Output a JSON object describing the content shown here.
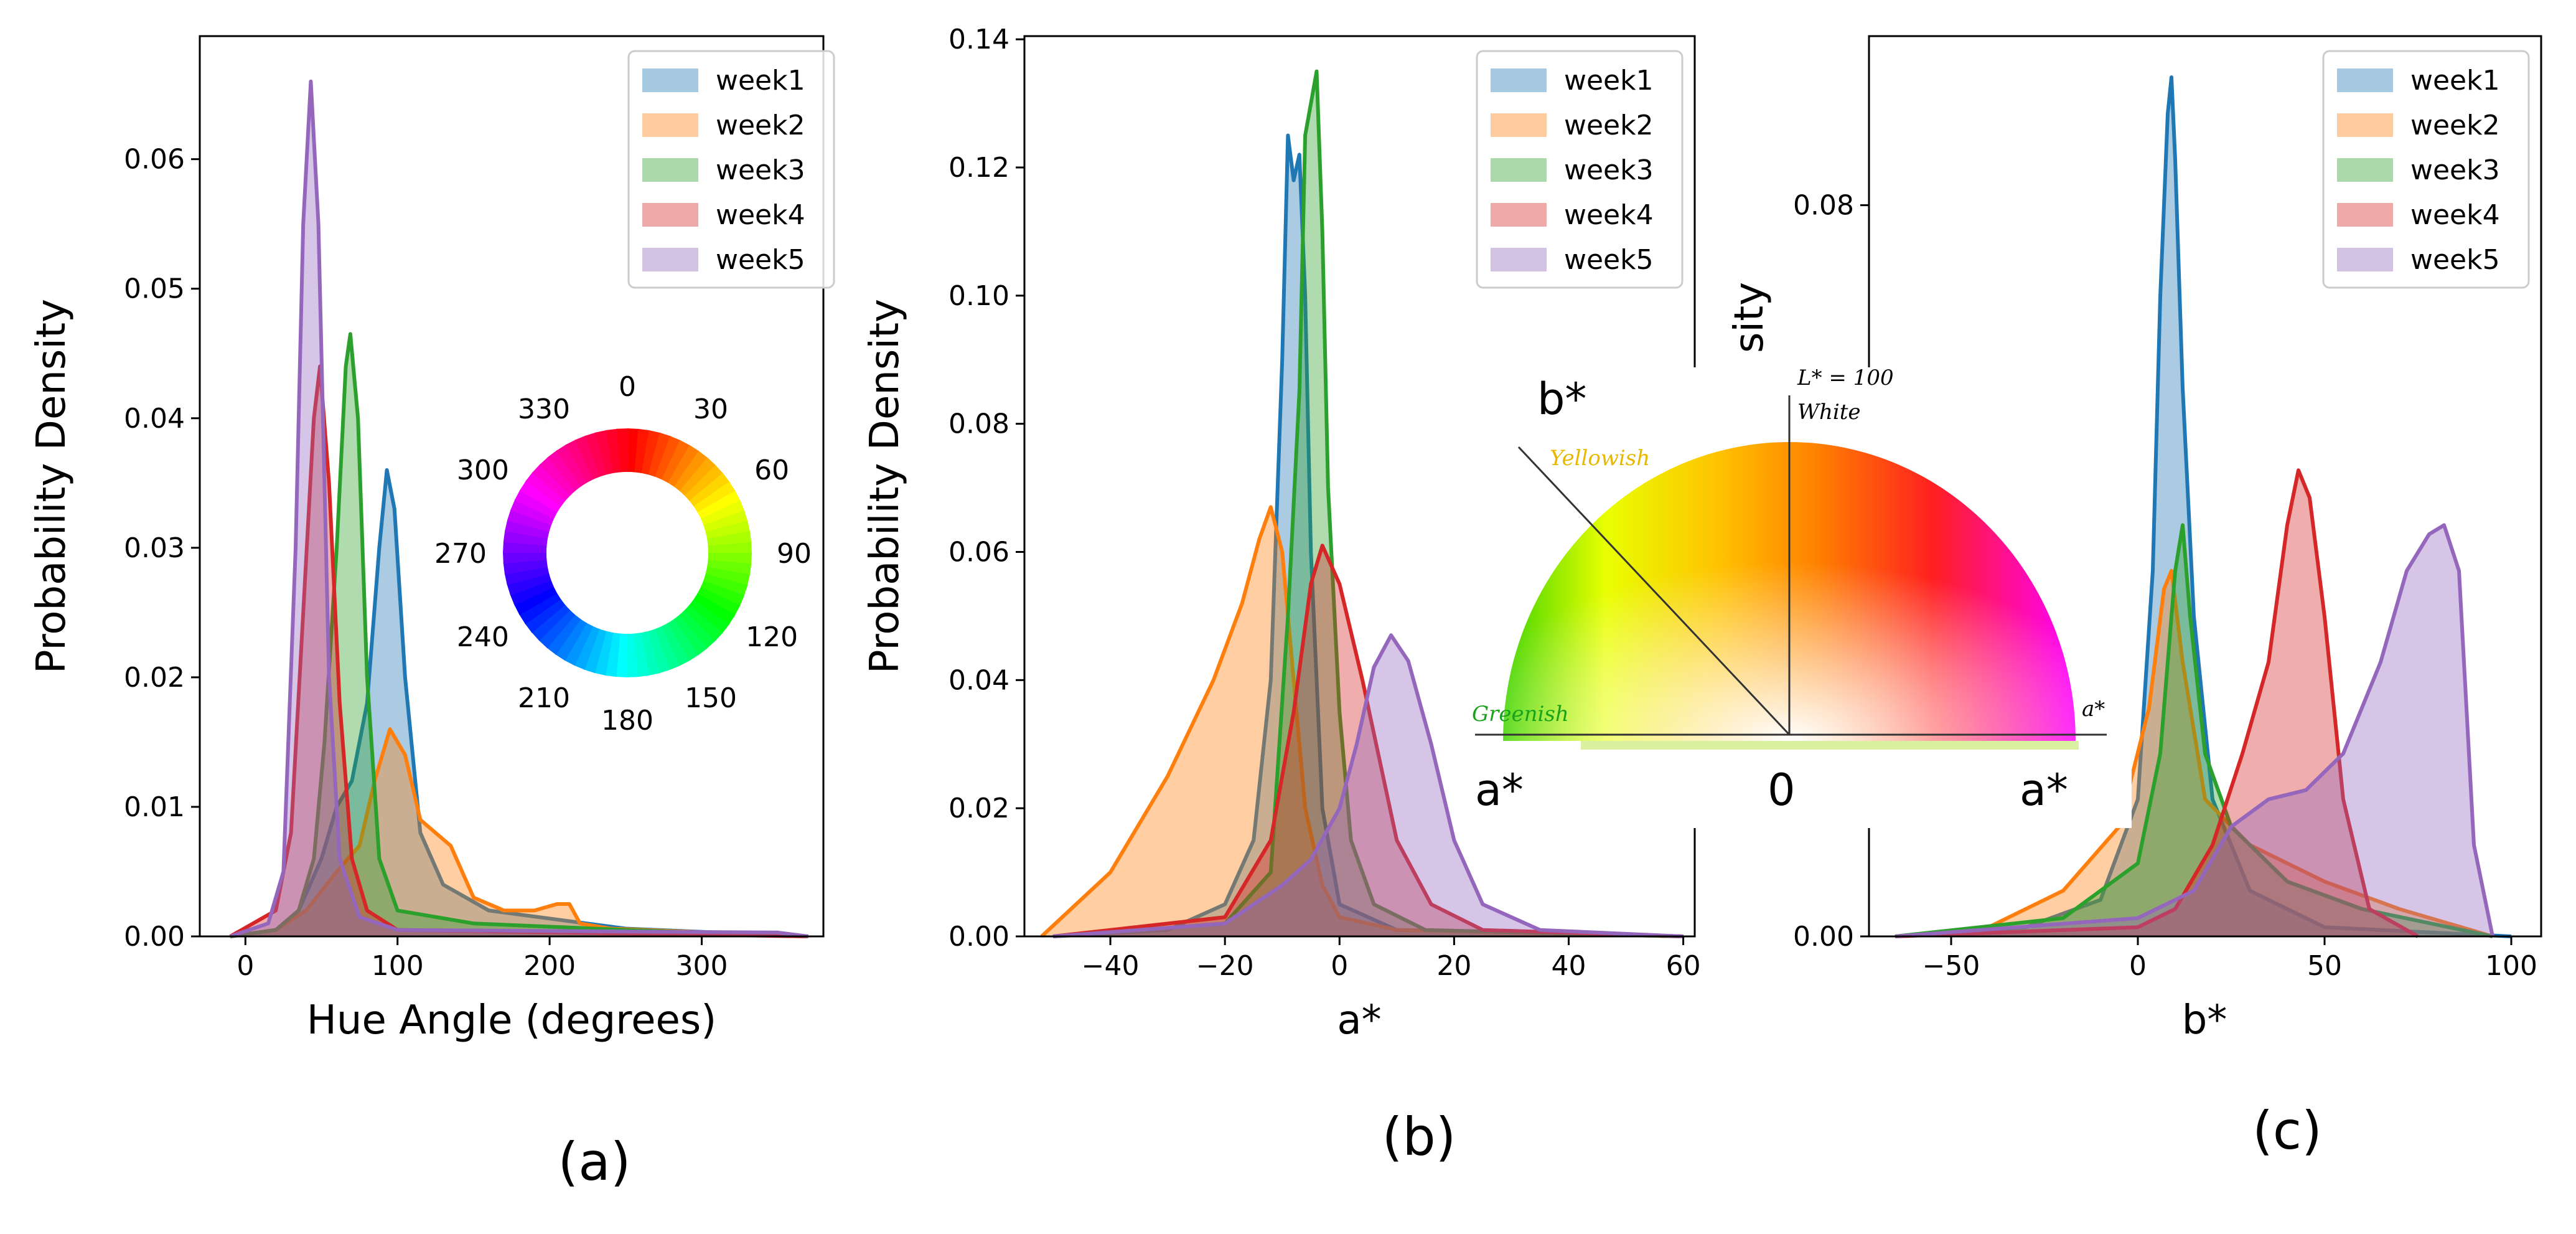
{
  "chart_data": [
    {
      "type": "area",
      "panel": "(a)",
      "xlabel": "Hue Angle (degrees)",
      "ylabel": "Probability Density",
      "xlim": [
        -30,
        380
      ],
      "ylim": [
        0,
        0.0695
      ],
      "xticks": [
        0,
        100,
        200,
        300
      ],
      "yticks": [
        0.0,
        0.01,
        0.02,
        0.03,
        0.04,
        0.05,
        0.06
      ],
      "ytick_labels": [
        "0.00",
        "0.01",
        "0.02",
        "0.03",
        "0.04",
        "0.05",
        "0.06"
      ],
      "legend": [
        "week1",
        "week2",
        "week3",
        "week4",
        "week5"
      ],
      "legend_position": "top-right",
      "series": [
        {
          "name": "week1",
          "color": "#1f77b4",
          "points": [
            [
              -10,
              0
            ],
            [
              20,
              0.0005
            ],
            [
              35,
              0.002
            ],
            [
              50,
              0.006
            ],
            [
              60,
              0.01
            ],
            [
              70,
              0.012
            ],
            [
              80,
              0.018
            ],
            [
              88,
              0.03
            ],
            [
              93,
              0.036
            ],
            [
              98,
              0.033
            ],
            [
              105,
              0.02
            ],
            [
              115,
              0.008
            ],
            [
              130,
              0.004
            ],
            [
              160,
              0.002
            ],
            [
              250,
              0.0006
            ],
            [
              370,
              0
            ]
          ]
        },
        {
          "name": "week2",
          "color": "#ff7f0e",
          "points": [
            [
              -10,
              0
            ],
            [
              20,
              0.0005
            ],
            [
              40,
              0.002
            ],
            [
              60,
              0.005
            ],
            [
              75,
              0.007
            ],
            [
              85,
              0.012
            ],
            [
              95,
              0.016
            ],
            [
              105,
              0.014
            ],
            [
              115,
              0.009
            ],
            [
              125,
              0.008
            ],
            [
              135,
              0.007
            ],
            [
              150,
              0.003
            ],
            [
              170,
              0.002
            ],
            [
              190,
              0.002
            ],
            [
              205,
              0.0025
            ],
            [
              213,
              0.0025
            ],
            [
              220,
              0.001
            ],
            [
              240,
              0.0006
            ],
            [
              370,
              0
            ]
          ]
        },
        {
          "name": "week3",
          "color": "#2ca02c",
          "points": [
            [
              -10,
              0
            ],
            [
              20,
              0.0005
            ],
            [
              35,
              0.002
            ],
            [
              45,
              0.006
            ],
            [
              52,
              0.015
            ],
            [
              60,
              0.03
            ],
            [
              66,
              0.044
            ],
            [
              69,
              0.0465
            ],
            [
              74,
              0.04
            ],
            [
              80,
              0.02
            ],
            [
              88,
              0.006
            ],
            [
              100,
              0.002
            ],
            [
              150,
              0.001
            ],
            [
              250,
              0.0005
            ],
            [
              370,
              0
            ]
          ]
        },
        {
          "name": "week4",
          "color": "#d62728",
          "points": [
            [
              -10,
              0
            ],
            [
              20,
              0.002
            ],
            [
              30,
              0.008
            ],
            [
              38,
              0.025
            ],
            [
              45,
              0.04
            ],
            [
              49,
              0.044
            ],
            [
              55,
              0.035
            ],
            [
              62,
              0.018
            ],
            [
              70,
              0.006
            ],
            [
              80,
              0.002
            ],
            [
              100,
              0.0005
            ],
            [
              370,
              0
            ]
          ]
        },
        {
          "name": "week5",
          "color": "#9467bd",
          "points": [
            [
              -10,
              0
            ],
            [
              15,
              0.001
            ],
            [
              25,
              0.005
            ],
            [
              33,
              0.03
            ],
            [
              38,
              0.055
            ],
            [
              43,
              0.066
            ],
            [
              48,
              0.055
            ],
            [
              55,
              0.02
            ],
            [
              62,
              0.006
            ],
            [
              75,
              0.0015
            ],
            [
              100,
              0.0005
            ],
            [
              350,
              0.0003
            ],
            [
              370,
              0
            ]
          ]
        }
      ],
      "inset": {
        "type": "hue-wheel",
        "labels": [
          "0",
          "30",
          "60",
          "90",
          "120",
          "150",
          "180",
          "210",
          "240",
          "270",
          "300",
          "330"
        ]
      }
    },
    {
      "type": "area",
      "panel": "(b)",
      "xlabel": "a*",
      "ylabel": "Probability Density",
      "xlim": [
        -55,
        62
      ],
      "ylim": [
        0,
        0.1405
      ],
      "xticks": [
        -40,
        -20,
        0,
        20,
        40,
        60
      ],
      "xtick_labels": [
        "−40",
        "−20",
        "0",
        "20",
        "40",
        "60"
      ],
      "yticks": [
        0.0,
        0.02,
        0.04,
        0.06,
        0.08,
        0.1,
        0.12,
        0.14
      ],
      "ytick_labels": [
        "0.00",
        "0.02",
        "0.04",
        "0.06",
        "0.08",
        "0.10",
        "0.12",
        "0.14"
      ],
      "legend": [
        "week1",
        "week2",
        "week3",
        "week4",
        "week5"
      ],
      "legend_position": "top-right",
      "series": [
        {
          "name": "week1",
          "color": "#1f77b4",
          "points": [
            [
              -50,
              0
            ],
            [
              -30,
              0.001
            ],
            [
              -20,
              0.005
            ],
            [
              -15,
              0.015
            ],
            [
              -12,
              0.04
            ],
            [
              -10,
              0.09
            ],
            [
              -9,
              0.125
            ],
            [
              -8,
              0.118
            ],
            [
              -7,
              0.122
            ],
            [
              -6,
              0.1
            ],
            [
              -5,
              0.06
            ],
            [
              -3,
              0.02
            ],
            [
              0,
              0.005
            ],
            [
              10,
              0.001
            ],
            [
              60,
              0
            ]
          ]
        },
        {
          "name": "week2",
          "color": "#ff7f0e",
          "points": [
            [
              -52,
              0
            ],
            [
              -40,
              0.01
            ],
            [
              -30,
              0.025
            ],
            [
              -22,
              0.04
            ],
            [
              -17,
              0.052
            ],
            [
              -14,
              0.062
            ],
            [
              -12,
              0.067
            ],
            [
              -10,
              0.06
            ],
            [
              -8,
              0.04
            ],
            [
              -6,
              0.02
            ],
            [
              -3,
              0.008
            ],
            [
              0,
              0.003
            ],
            [
              10,
              0.001
            ],
            [
              60,
              0
            ]
          ]
        },
        {
          "name": "week3",
          "color": "#2ca02c",
          "points": [
            [
              -50,
              0
            ],
            [
              -20,
              0.002
            ],
            [
              -12,
              0.01
            ],
            [
              -9,
              0.05
            ],
            [
              -7,
              0.085
            ],
            [
              -6,
              0.125
            ],
            [
              -5,
              0.13
            ],
            [
              -4,
              0.135
            ],
            [
              -3,
              0.11
            ],
            [
              -2,
              0.07
            ],
            [
              0,
              0.035
            ],
            [
              2,
              0.015
            ],
            [
              6,
              0.005
            ],
            [
              15,
              0.001
            ],
            [
              60,
              0
            ]
          ]
        },
        {
          "name": "week4",
          "color": "#d62728",
          "points": [
            [
              -50,
              0
            ],
            [
              -20,
              0.003
            ],
            [
              -12,
              0.015
            ],
            [
              -8,
              0.035
            ],
            [
              -5,
              0.055
            ],
            [
              -3,
              0.061
            ],
            [
              0,
              0.055
            ],
            [
              4,
              0.04
            ],
            [
              10,
              0.015
            ],
            [
              16,
              0.005
            ],
            [
              25,
              0.001
            ],
            [
              60,
              0
            ]
          ]
        },
        {
          "name": "week5",
          "color": "#9467bd",
          "points": [
            [
              -50,
              0
            ],
            [
              -20,
              0.002
            ],
            [
              -10,
              0.008
            ],
            [
              -5,
              0.012
            ],
            [
              0,
              0.02
            ],
            [
              3,
              0.03
            ],
            [
              6,
              0.042
            ],
            [
              9,
              0.047
            ],
            [
              12,
              0.043
            ],
            [
              16,
              0.03
            ],
            [
              20,
              0.015
            ],
            [
              25,
              0.005
            ],
            [
              35,
              0.001
            ],
            [
              60,
              0
            ]
          ]
        }
      ]
    },
    {
      "type": "area",
      "panel": "(c)",
      "xlabel": "b*",
      "ylabel": "sity",
      "xlim": [
        -72,
        108
      ],
      "ylim": [
        0,
        0.0985
      ],
      "xticks": [
        -50,
        0,
        50,
        100
      ],
      "xtick_labels": [
        "−50",
        "0",
        "50",
        "100"
      ],
      "yticks": [
        0.0,
        0.08
      ],
      "ytick_labels": [
        "0.00",
        "0.08"
      ],
      "legend": [
        "week1",
        "week2",
        "week3",
        "week4",
        "week5"
      ],
      "legend_position": "top-right",
      "series": [
        {
          "name": "week1",
          "color": "#1f77b4",
          "points": [
            [
              -65,
              0
            ],
            [
              -30,
              0.001
            ],
            [
              -10,
              0.004
            ],
            [
              0,
              0.015
            ],
            [
              4,
              0.04
            ],
            [
              6,
              0.07
            ],
            [
              8,
              0.09
            ],
            [
              9,
              0.094
            ],
            [
              10,
              0.085
            ],
            [
              12,
              0.06
            ],
            [
              15,
              0.035
            ],
            [
              20,
              0.015
            ],
            [
              30,
              0.005
            ],
            [
              50,
              0.001
            ],
            [
              100,
              0
            ]
          ]
        },
        {
          "name": "week2",
          "color": "#ff7f0e",
          "points": [
            [
              -65,
              0
            ],
            [
              -40,
              0.001
            ],
            [
              -20,
              0.005
            ],
            [
              -5,
              0.012
            ],
            [
              3,
              0.025
            ],
            [
              7,
              0.038
            ],
            [
              9,
              0.04
            ],
            [
              12,
              0.03
            ],
            [
              18,
              0.015
            ],
            [
              30,
              0.01
            ],
            [
              50,
              0.006
            ],
            [
              70,
              0.003
            ],
            [
              95,
              0
            ]
          ]
        },
        {
          "name": "week3",
          "color": "#2ca02c",
          "points": [
            [
              -65,
              0
            ],
            [
              -20,
              0.002
            ],
            [
              0,
              0.008
            ],
            [
              6,
              0.02
            ],
            [
              10,
              0.04
            ],
            [
              12,
              0.045
            ],
            [
              14,
              0.035
            ],
            [
              18,
              0.02
            ],
            [
              25,
              0.012
            ],
            [
              40,
              0.006
            ],
            [
              60,
              0.003
            ],
            [
              95,
              0
            ]
          ]
        },
        {
          "name": "week4",
          "color": "#d62728",
          "points": [
            [
              -65,
              0
            ],
            [
              0,
              0.001
            ],
            [
              10,
              0.003
            ],
            [
              20,
              0.01
            ],
            [
              28,
              0.02
            ],
            [
              35,
              0.03
            ],
            [
              40,
              0.045
            ],
            [
              43,
              0.051
            ],
            [
              46,
              0.048
            ],
            [
              50,
              0.035
            ],
            [
              55,
              0.015
            ],
            [
              62,
              0.003
            ],
            [
              75,
              0
            ]
          ]
        },
        {
          "name": "week5",
          "color": "#9467bd",
          "points": [
            [
              -65,
              0
            ],
            [
              0,
              0.002
            ],
            [
              15,
              0.005
            ],
            [
              25,
              0.012
            ],
            [
              35,
              0.015
            ],
            [
              45,
              0.016
            ],
            [
              55,
              0.02
            ],
            [
              65,
              0.03
            ],
            [
              72,
              0.04
            ],
            [
              78,
              0.044
            ],
            [
              82,
              0.045
            ],
            [
              86,
              0.04
            ],
            [
              90,
              0.01
            ],
            [
              95,
              0
            ]
          ]
        }
      ],
      "inset": {
        "type": "lab-diagram",
        "labels": {
          "b_star": "b*",
          "l_star": "L* = 100",
          "white": "White",
          "yellowish": "Yellowish",
          "greenish": "Greenish",
          "a_star_small": "a*",
          "a_star_left": "a*",
          "zero": "0",
          "a_star_right": "a*"
        }
      }
    }
  ]
}
